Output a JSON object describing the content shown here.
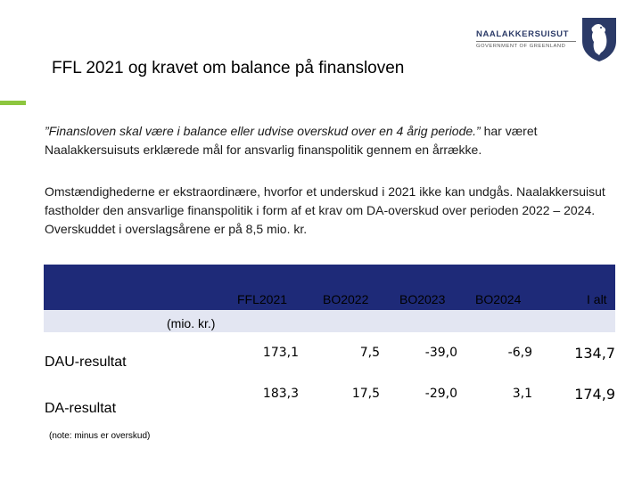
{
  "logo": {
    "name": "NAALAKKERSUISUT",
    "subtitle": "GOVERNMENT OF GREENLAND"
  },
  "title": "FFL 2021 og kravet om balance på finansloven",
  "paragraph1": {
    "quote": "”Finansloven skal være i balance eller udvise overskud over en 4 årig periode.”",
    "rest": " har været Naalakkersuisuts erklærede mål for ansvarlig finanspolitik gennem en årrække."
  },
  "paragraph2": "Omstændighederne er ekstraordinære, hvorfor et underskud i 2021 ikke kan undgås. Naalakkersuisut fastholder den ansvarlige finanspolitik i form af et krav om DA-overskud over perioden 2022 – 2024. Overskuddet i overslagsårene er på 8,5 mio. kr.",
  "table": {
    "columns": [
      "FFL2021",
      "BO2022",
      "BO2023",
      "BO2024",
      "I alt"
    ],
    "unit": "(mio. kr.)",
    "rows": [
      {
        "label": "DAU-resultat",
        "values": [
          "173,1",
          "7,5",
          "-39,0",
          "-6,9",
          "134,7"
        ]
      },
      {
        "label": "DA-resultat",
        "values": [
          "183,3",
          "17,5",
          "-29,0",
          "3,1",
          "174,9"
        ]
      }
    ],
    "note": "(note: minus er overskud)"
  },
  "colors": {
    "header_bg": "#1e2a78",
    "subheader_bg": "#e3e6f2",
    "accent_green": "#8dc63f"
  }
}
